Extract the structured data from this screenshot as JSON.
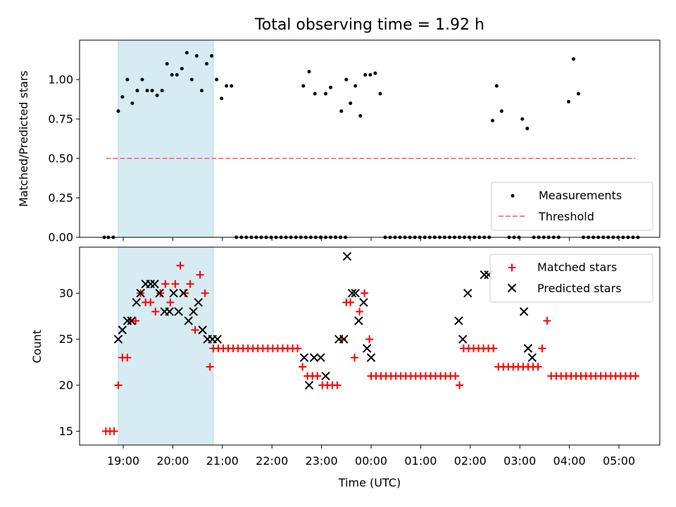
{
  "chart_data": [
    {
      "type": "scatter",
      "title": "Total observing time = 1.92 h",
      "ylabel": "Matched/Predicted stars",
      "xlabel": "",
      "ylim": [
        0.0,
        1.25
      ],
      "yticks": [
        0.0,
        0.25,
        0.5,
        0.75,
        1.0
      ],
      "ytick_labels": [
        "0.00",
        "0.25",
        "0.50",
        "0.75",
        "1.00"
      ],
      "shaded_x": [
        "18:54",
        "20:49"
      ],
      "threshold": {
        "name": "Threshold",
        "value": 0.5,
        "x_start": "18:39",
        "x_end": "05:20",
        "color": "#ff7f7f"
      },
      "measurements": {
        "name": "Measurements",
        "color": "#000000",
        "points": [
          [
            "18:37",
            0
          ],
          [
            "18:42",
            0
          ],
          [
            "18:48",
            0
          ],
          [
            "18:54",
            0.8
          ],
          [
            "18:59",
            0.89
          ],
          [
            "19:05",
            1.0
          ],
          [
            "19:11",
            0.85
          ],
          [
            "19:17",
            0.93
          ],
          [
            "19:23",
            1.0
          ],
          [
            "19:29",
            0.93
          ],
          [
            "19:35",
            0.93
          ],
          [
            "19:41",
            0.9
          ],
          [
            "19:47",
            0.93
          ],
          [
            "19:53",
            1.1
          ],
          [
            "19:59",
            1.03
          ],
          [
            "20:05",
            1.03
          ],
          [
            "20:11",
            1.07
          ],
          [
            "20:17",
            1.17
          ],
          [
            "20:23",
            1.0
          ],
          [
            "20:29",
            1.15
          ],
          [
            "20:35",
            0.93
          ],
          [
            "20:41",
            1.1
          ],
          [
            "20:47",
            1.15
          ],
          [
            "20:53",
            1.0
          ],
          [
            "20:59",
            0.88
          ],
          [
            "21:05",
            0.96
          ],
          [
            "21:11",
            0.96
          ],
          [
            "21:17",
            0
          ],
          [
            "21:23",
            0
          ],
          [
            "21:29",
            0
          ],
          [
            "21:35",
            0
          ],
          [
            "21:41",
            0
          ],
          [
            "21:47",
            0
          ],
          [
            "21:53",
            0
          ],
          [
            "21:59",
            0
          ],
          [
            "22:05",
            0
          ],
          [
            "22:11",
            0
          ],
          [
            "22:17",
            0
          ],
          [
            "22:23",
            0
          ],
          [
            "22:29",
            0
          ],
          [
            "22:35",
            0
          ],
          [
            "22:41",
            0
          ],
          [
            "22:47",
            0
          ],
          [
            "22:53",
            0
          ],
          [
            "22:59",
            0
          ],
          [
            "23:05",
            0
          ],
          [
            "23:11",
            0
          ],
          [
            "23:17",
            0
          ],
          [
            "23:23",
            0
          ],
          [
            "23:29",
            0
          ],
          [
            "22:38",
            0.96
          ],
          [
            "22:45",
            1.05
          ],
          [
            "22:52",
            0.91
          ],
          [
            "22:59",
            0
          ],
          [
            "23:05",
            0.91
          ],
          [
            "23:11",
            0.95
          ],
          [
            "23:17",
            0
          ],
          [
            "23:23",
            0
          ],
          [
            "23:24",
            0.8
          ],
          [
            "23:30",
            1.0
          ],
          [
            "23:35",
            0.85
          ],
          [
            "23:41",
            0.96
          ],
          [
            "23:47",
            0.77
          ],
          [
            "23:53",
            1.03
          ],
          [
            "23:59",
            1.03
          ],
          [
            "00:05",
            1.04
          ],
          [
            "00:11",
            0.91
          ],
          [
            "00:17",
            0
          ],
          [
            "00:23",
            0
          ],
          [
            "00:29",
            0
          ],
          [
            "00:35",
            0
          ],
          [
            "00:41",
            0
          ],
          [
            "00:47",
            0
          ],
          [
            "00:53",
            0
          ],
          [
            "00:59",
            0
          ],
          [
            "01:05",
            0
          ],
          [
            "01:11",
            0
          ],
          [
            "01:17",
            0
          ],
          [
            "01:23",
            0
          ],
          [
            "01:29",
            0
          ],
          [
            "01:35",
            0
          ],
          [
            "01:41",
            0
          ],
          [
            "01:47",
            0
          ],
          [
            "01:53",
            0
          ],
          [
            "01:59",
            0
          ],
          [
            "02:05",
            0
          ],
          [
            "02:11",
            0
          ],
          [
            "02:17",
            0
          ],
          [
            "02:23",
            0
          ],
          [
            "02:27",
            0.74
          ],
          [
            "02:32",
            0.96
          ],
          [
            "02:38",
            0.8
          ],
          [
            "02:47",
            0
          ],
          [
            "02:53",
            0
          ],
          [
            "02:59",
            0
          ],
          [
            "03:03",
            0.75
          ],
          [
            "03:09",
            0.69
          ],
          [
            "03:17",
            0
          ],
          [
            "03:23",
            0
          ],
          [
            "03:29",
            0
          ],
          [
            "03:35",
            0
          ],
          [
            "03:41",
            0
          ],
          [
            "03:47",
            0
          ],
          [
            "03:59",
            0.86
          ],
          [
            "04:05",
            1.13
          ],
          [
            "04:11",
            0.91
          ],
          [
            "04:17",
            0
          ],
          [
            "04:23",
            0
          ],
          [
            "04:29",
            0
          ],
          [
            "04:35",
            0
          ],
          [
            "04:41",
            0
          ],
          [
            "04:47",
            0
          ],
          [
            "04:53",
            0
          ],
          [
            "04:59",
            0
          ],
          [
            "05:05",
            0
          ],
          [
            "05:11",
            0
          ],
          [
            "05:17",
            0
          ],
          [
            "05:23",
            0
          ]
        ]
      },
      "legend": {
        "position": "lower-right",
        "entries": [
          "Measurements",
          "Threshold"
        ]
      }
    },
    {
      "type": "scatter",
      "xlabel": "Time (UTC)",
      "ylabel": "Count",
      "ylim": [
        13.5,
        35.0
      ],
      "yticks": [
        15,
        20,
        25,
        30
      ],
      "ytick_labels": [
        "15",
        "20",
        "25",
        "30"
      ],
      "xtick_labels": [
        "19:00",
        "20:00",
        "21:00",
        "22:00",
        "23:00",
        "00:00",
        "01:00",
        "02:00",
        "03:00",
        "04:00",
        "05:00"
      ],
      "shaded_x": [
        "18:54",
        "20:49"
      ],
      "series": [
        {
          "name": "Matched stars",
          "marker": "+",
          "color": "#ff0000",
          "points": [
            [
              "18:39",
              15
            ],
            [
              "18:44",
              15
            ],
            [
              "18:49",
              15
            ],
            [
              "18:54",
              20
            ],
            [
              "18:59",
              23
            ],
            [
              "19:05",
              23
            ],
            [
              "19:09",
              27
            ],
            [
              "19:15",
              27
            ],
            [
              "19:21",
              30
            ],
            [
              "19:27",
              29
            ],
            [
              "19:33",
              29
            ],
            [
              "19:39",
              28
            ],
            [
              "19:45",
              30
            ],
            [
              "19:51",
              31
            ],
            [
              "19:57",
              29
            ],
            [
              "20:03",
              31
            ],
            [
              "20:09",
              33
            ],
            [
              "20:15",
              30
            ],
            [
              "20:21",
              31
            ],
            [
              "20:27",
              26
            ],
            [
              "20:33",
              32
            ],
            [
              "20:39",
              30
            ],
            [
              "20:45",
              22
            ],
            [
              "20:49",
              24
            ],
            [
              "20:55",
              24
            ],
            [
              "21:01",
              24
            ],
            [
              "21:07",
              24
            ],
            [
              "21:13",
              24
            ],
            [
              "21:19",
              24
            ],
            [
              "21:25",
              24
            ],
            [
              "21:31",
              24
            ],
            [
              "21:37",
              24
            ],
            [
              "21:43",
              24
            ],
            [
              "21:49",
              24
            ],
            [
              "21:55",
              24
            ],
            [
              "22:01",
              24
            ],
            [
              "22:07",
              24
            ],
            [
              "22:13",
              24
            ],
            [
              "22:19",
              24
            ],
            [
              "22:25",
              24
            ],
            [
              "22:31",
              24
            ],
            [
              "22:37",
              22
            ],
            [
              "22:43",
              21
            ],
            [
              "22:49",
              21
            ],
            [
              "22:55",
              21
            ],
            [
              "23:01",
              20
            ],
            [
              "23:07",
              20
            ],
            [
              "23:13",
              20
            ],
            [
              "23:19",
              20
            ],
            [
              "23:25",
              25
            ],
            [
              "23:30",
              29
            ],
            [
              "23:35",
              29
            ],
            [
              "23:40",
              23
            ],
            [
              "23:46",
              28
            ],
            [
              "23:52",
              30
            ],
            [
              "23:58",
              25
            ],
            [
              "00:00",
              21
            ],
            [
              "00:06",
              21
            ],
            [
              "00:12",
              21
            ],
            [
              "00:18",
              21
            ],
            [
              "00:24",
              21
            ],
            [
              "00:30",
              21
            ],
            [
              "00:36",
              21
            ],
            [
              "00:42",
              21
            ],
            [
              "00:48",
              21
            ],
            [
              "00:54",
              21
            ],
            [
              "01:00",
              21
            ],
            [
              "01:06",
              21
            ],
            [
              "01:12",
              21
            ],
            [
              "01:18",
              21
            ],
            [
              "01:24",
              21
            ],
            [
              "01:30",
              21
            ],
            [
              "01:36",
              21
            ],
            [
              "01:42",
              21
            ],
            [
              "01:47",
              20
            ],
            [
              "01:52",
              24
            ],
            [
              "01:58",
              24
            ],
            [
              "02:04",
              24
            ],
            [
              "02:10",
              24
            ],
            [
              "02:16",
              24
            ],
            [
              "02:22",
              24
            ],
            [
              "02:28",
              24
            ],
            [
              "02:34",
              22
            ],
            [
              "02:40",
              22
            ],
            [
              "02:46",
              22
            ],
            [
              "02:52",
              22
            ],
            [
              "02:58",
              22
            ],
            [
              "03:04",
              22
            ],
            [
              "03:10",
              22
            ],
            [
              "03:16",
              22
            ],
            [
              "03:22",
              22
            ],
            [
              "03:27",
              24
            ],
            [
              "03:33",
              27
            ],
            [
              "03:38",
              21
            ],
            [
              "03:44",
              21
            ],
            [
              "03:50",
              21
            ],
            [
              "03:56",
              21
            ],
            [
              "04:02",
              21
            ],
            [
              "04:08",
              21
            ],
            [
              "04:14",
              21
            ],
            [
              "04:20",
              21
            ],
            [
              "04:26",
              21
            ],
            [
              "04:32",
              21
            ],
            [
              "04:38",
              21
            ],
            [
              "04:44",
              21
            ],
            [
              "04:50",
              21
            ],
            [
              "04:56",
              21
            ],
            [
              "05:02",
              21
            ],
            [
              "05:08",
              21
            ],
            [
              "05:14",
              21
            ],
            [
              "05:20",
              21
            ]
          ]
        },
        {
          "name": "Predicted stars",
          "marker": "x",
          "color": "#000000",
          "points": [
            [
              "18:54",
              25
            ],
            [
              "18:59",
              26
            ],
            [
              "19:05",
              27
            ],
            [
              "19:10",
              27
            ],
            [
              "19:16",
              29
            ],
            [
              "19:21",
              30
            ],
            [
              "19:27",
              31
            ],
            [
              "19:33",
              31
            ],
            [
              "19:38",
              31
            ],
            [
              "19:44",
              30
            ],
            [
              "19:50",
              28
            ],
            [
              "19:56",
              28
            ],
            [
              "20:01",
              30
            ],
            [
              "20:07",
              28
            ],
            [
              "20:13",
              30
            ],
            [
              "20:19",
              27
            ],
            [
              "20:25",
              28
            ],
            [
              "20:31",
              29
            ],
            [
              "20:36",
              26
            ],
            [
              "20:42",
              25
            ],
            [
              "20:48",
              25
            ],
            [
              "20:54",
              25
            ],
            [
              "22:39",
              23
            ],
            [
              "22:45",
              20
            ],
            [
              "22:51",
              23
            ],
            [
              "22:59",
              23
            ],
            [
              "23:05",
              21
            ],
            [
              "23:21",
              25
            ],
            [
              "23:27",
              25
            ],
            [
              "23:31",
              34
            ],
            [
              "23:37",
              30
            ],
            [
              "23:41",
              30
            ],
            [
              "23:45",
              27
            ],
            [
              "23:51",
              29
            ],
            [
              "23:55",
              24
            ],
            [
              "00:00",
              23
            ],
            [
              "01:46",
              27
            ],
            [
              "01:51",
              25
            ],
            [
              "01:57",
              30
            ],
            [
              "02:17",
              32
            ],
            [
              "02:22",
              32
            ],
            [
              "03:05",
              28
            ],
            [
              "03:10",
              24
            ],
            [
              "03:15",
              23
            ]
          ]
        }
      ],
      "legend": {
        "position": "upper-right",
        "entries": [
          "Matched stars",
          "Predicted stars"
        ]
      }
    }
  ]
}
